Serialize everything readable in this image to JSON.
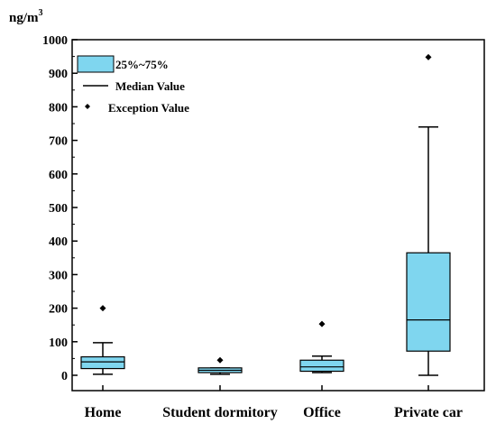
{
  "chart_data": {
    "type": "box",
    "unit": {
      "base": "ng/m",
      "sup": "3"
    },
    "ylim": [
      0,
      1000
    ],
    "yticks": [
      "0",
      "100",
      "200",
      "300",
      "400",
      "500",
      "600",
      "700",
      "800",
      "900",
      "1000"
    ],
    "grid": false,
    "legend_position": "top-left",
    "legend": {
      "box": "25%~75%",
      "median": "Median Value",
      "outlier": "Exception Value"
    },
    "colors": {
      "box_fill": "#7fd6ef",
      "stroke": "#000000"
    },
    "categories": [
      {
        "label": "Home",
        "min": 3,
        "q1": 20,
        "median": 40,
        "q3": 55,
        "max": 97,
        "outliers": [
          200
        ]
      },
      {
        "label": "Student dormitory",
        "min": 3,
        "q1": 8,
        "median": 15,
        "q3": 22,
        "max": 22,
        "outliers": [
          45
        ]
      },
      {
        "label": "Office",
        "min": 8,
        "q1": 12,
        "median": 25,
        "q3": 45,
        "max": 57,
        "outliers": [
          153
        ]
      },
      {
        "label": "Private car",
        "min": 0,
        "q1": 72,
        "median": 165,
        "q3": 365,
        "max": 740,
        "outliers": [
          948
        ]
      }
    ]
  }
}
